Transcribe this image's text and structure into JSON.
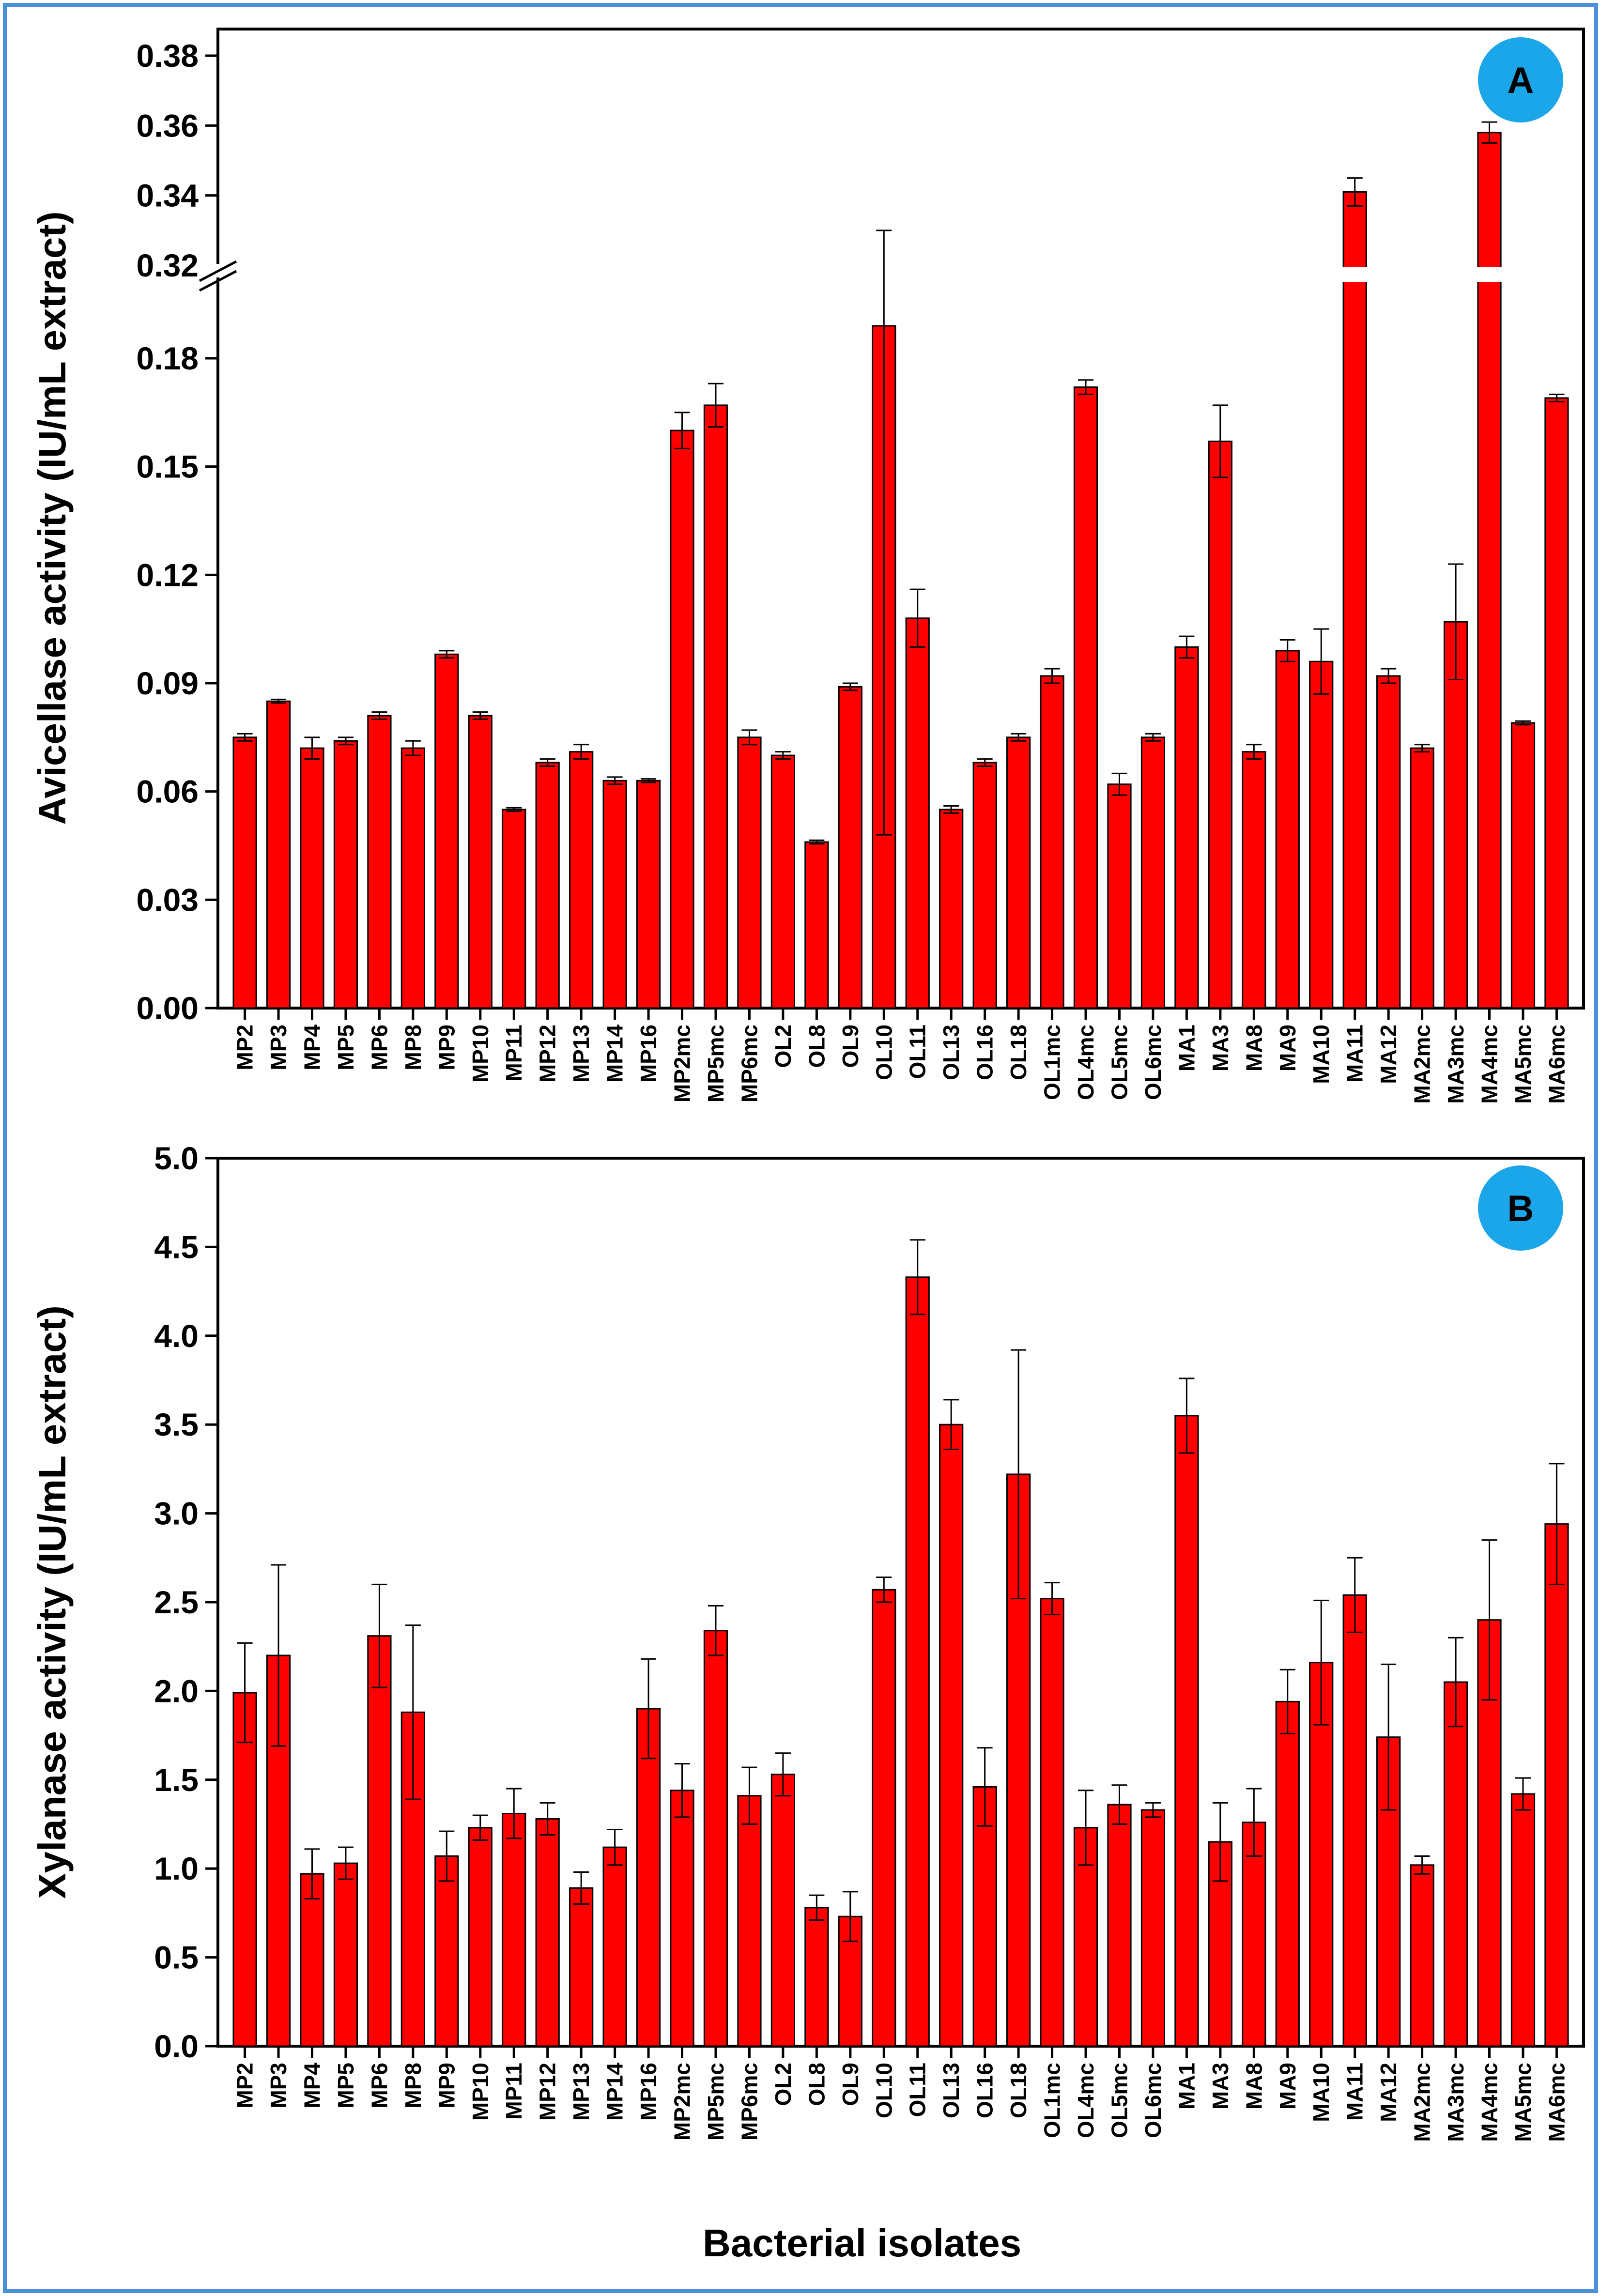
{
  "figure": {
    "xlabel": "Bacterial isolates",
    "colors": {
      "bar": "#ff0000",
      "frame": "#4a8fd8",
      "badge": "#1aa6e8"
    }
  },
  "chart_data": [
    {
      "type": "bar",
      "panel": "A",
      "ylabel": "Avicellase activity (IU/mL extract)",
      "xlabel": "",
      "broken_axis": {
        "lower": [
          0,
          0.19
        ],
        "upper": [
          0.32,
          0.38
        ]
      },
      "yticks_lower": [
        "0.00",
        "0.03",
        "0.06",
        "0.09",
        "0.12",
        "0.15",
        "0.18"
      ],
      "yticks_upper": [
        "0.32",
        "0.34",
        "0.36",
        "0.38"
      ],
      "categories": [
        "MP2",
        "MP3",
        "MP4",
        "MP5",
        "MP6",
        "MP8",
        "MP9",
        "MP10",
        "MP11",
        "MP12",
        "MP13",
        "MP14",
        "MP16",
        "MP2mc",
        "MP5mc",
        "MP6mc",
        "OL2",
        "OL8",
        "OL9",
        "OL10",
        "OL11",
        "OL13",
        "OL16",
        "OL18",
        "OL1mc",
        "OL4mc",
        "OL5mc",
        "OL6mc",
        "MA1",
        "MA3",
        "MA8",
        "MA9",
        "MA10",
        "MA11",
        "MA12",
        "MA2mc",
        "MA3mc",
        "MA4mc",
        "MA5mc",
        "MA6mc"
      ],
      "values": [
        0.075,
        0.085,
        0.072,
        0.074,
        0.081,
        0.072,
        0.098,
        0.081,
        0.055,
        0.068,
        0.071,
        0.063,
        0.063,
        0.16,
        0.167,
        0.075,
        0.07,
        0.046,
        0.089,
        0.189,
        0.108,
        0.055,
        0.068,
        0.075,
        0.092,
        0.172,
        0.062,
        0.075,
        0.1,
        0.157,
        0.071,
        0.099,
        0.096,
        0.341,
        0.092,
        0.072,
        0.107,
        0.358,
        0.079,
        0.169
      ],
      "errors": [
        0.001,
        0.0005,
        0.003,
        0.001,
        0.001,
        0.002,
        0.001,
        0.001,
        0.0005,
        0.001,
        0.002,
        0.001,
        0.0005,
        0.005,
        0.006,
        0.002,
        0.001,
        0.0005,
        0.001,
        0.141,
        0.008,
        0.001,
        0.001,
        0.001,
        0.002,
        0.002,
        0.003,
        0.001,
        0.003,
        0.01,
        0.002,
        0.003,
        0.009,
        0.004,
        0.002,
        0.001,
        0.016,
        0.003,
        0.0005,
        0.001
      ]
    },
    {
      "type": "bar",
      "panel": "B",
      "ylabel": "Xylanase activity (IU/mL extract)",
      "xlabel": "Bacterial isolates",
      "ylim": [
        0,
        5.0
      ],
      "yticks": [
        "0.0",
        "0.5",
        "1.0",
        "1.5",
        "2.0",
        "2.5",
        "3.0",
        "3.5",
        "4.0",
        "4.5",
        "5.0"
      ],
      "categories": [
        "MP2",
        "MP3",
        "MP4",
        "MP5",
        "MP6",
        "MP8",
        "MP9",
        "MP10",
        "MP11",
        "MP12",
        "MP13",
        "MP14",
        "MP16",
        "MP2mc",
        "MP5mc",
        "MP6mc",
        "OL2",
        "OL8",
        "OL9",
        "OL10",
        "OL11",
        "OL13",
        "OL16",
        "OL18",
        "OL1mc",
        "OL4mc",
        "OL5mc",
        "OL6mc",
        "MA1",
        "MA3",
        "MA8",
        "MA9",
        "MA10",
        "MA11",
        "MA12",
        "MA2mc",
        "MA3mc",
        "MA4mc",
        "MA5mc",
        "MA6mc"
      ],
      "values": [
        1.99,
        2.2,
        0.97,
        1.03,
        2.31,
        1.88,
        1.07,
        1.23,
        1.31,
        1.28,
        0.89,
        1.12,
        1.9,
        1.44,
        2.34,
        1.41,
        1.53,
        0.78,
        0.73,
        2.57,
        4.33,
        3.5,
        1.46,
        3.22,
        2.52,
        1.23,
        1.36,
        1.33,
        3.55,
        1.15,
        1.26,
        1.94,
        2.16,
        2.54,
        1.74,
        1.02,
        2.05,
        2.4,
        1.42,
        2.94
      ],
      "errors": [
        0.28,
        0.51,
        0.14,
        0.09,
        0.29,
        0.49,
        0.14,
        0.07,
        0.14,
        0.09,
        0.09,
        0.1,
        0.28,
        0.15,
        0.14,
        0.16,
        0.12,
        0.07,
        0.14,
        0.07,
        0.21,
        0.14,
        0.22,
        0.7,
        0.09,
        0.21,
        0.11,
        0.04,
        0.21,
        0.22,
        0.19,
        0.18,
        0.35,
        0.21,
        0.41,
        0.05,
        0.25,
        0.45,
        0.09,
        0.34
      ]
    }
  ]
}
